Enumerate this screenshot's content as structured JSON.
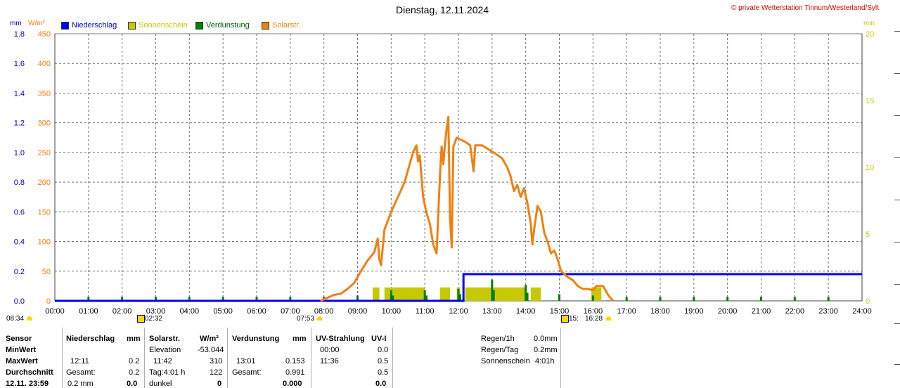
{
  "header": {
    "title": "Dienstag, 12.11.2024",
    "copyright": "© private Wetterstation Tinnum/Westerland/Sylt",
    "unit_mm": "mm",
    "unit_wm2": "W/m²",
    "unit_min": "min"
  },
  "legend": [
    {
      "label": "Niederschlag",
      "color": "#0000ff"
    },
    {
      "label": "Sonnenschein",
      "color": "#c8c800"
    },
    {
      "label": "Verdunstung",
      "color": "#008000"
    },
    {
      "label": "Solarstr.",
      "color": "#f08010"
    }
  ],
  "markers": {
    "left_time": "08:34",
    "moon_time": "02:32",
    "sunrise": "07:53",
    "sunset_a": "15:",
    "sunset_b": "16:28"
  },
  "chart_data": {
    "type": "line",
    "x_ticks": [
      "00:00",
      "01:00",
      "02:00",
      "03:00",
      "04:00",
      "05:00",
      "06:00",
      "07:00",
      "08:00",
      "09:00",
      "10:00",
      "11:00",
      "12:00",
      "13:00",
      "14:00",
      "15:00",
      "16:00",
      "17:00",
      "18:00",
      "19:00",
      "20:00",
      "21:00",
      "22:00",
      "23:00",
      "24:00"
    ],
    "y_left_mm_ticks": [
      "0.0",
      "0.2",
      "0.4",
      "0.6",
      "0.8",
      "1.0",
      "1.2",
      "1.4",
      "1.6",
      "1.8"
    ],
    "y_left_wm2_ticks": [
      "0",
      "50",
      "100",
      "150",
      "200",
      "250",
      "300",
      "350",
      "400",
      "450"
    ],
    "y_right_min_ticks": [
      "0",
      "5",
      "10",
      "15",
      "20"
    ],
    "ylim_mm": [
      0,
      2.0
    ],
    "ylim_wm2": [
      0,
      450
    ],
    "ylim_min": [
      0,
      20
    ],
    "xlim_hours": [
      0,
      24
    ],
    "grid": true,
    "series": [
      {
        "name": "Solarstr.",
        "unit": "W/m²",
        "color": "#f08010",
        "points": [
          [
            7.9,
            0
          ],
          [
            8.1,
            5
          ],
          [
            8.3,
            10
          ],
          [
            8.5,
            12
          ],
          [
            8.7,
            20
          ],
          [
            8.9,
            30
          ],
          [
            9.1,
            50
          ],
          [
            9.3,
            68
          ],
          [
            9.5,
            82
          ],
          [
            9.6,
            105
          ],
          [
            9.65,
            70
          ],
          [
            9.7,
            60
          ],
          [
            9.8,
            120
          ],
          [
            10.0,
            150
          ],
          [
            10.2,
            175
          ],
          [
            10.4,
            200
          ],
          [
            10.55,
            230
          ],
          [
            10.65,
            250
          ],
          [
            10.75,
            262
          ],
          [
            10.8,
            235
          ],
          [
            10.85,
            245
          ],
          [
            10.95,
            175
          ],
          [
            11.05,
            148
          ],
          [
            11.15,
            130
          ],
          [
            11.25,
            95
          ],
          [
            11.35,
            80
          ],
          [
            11.45,
            210
          ],
          [
            11.5,
            260
          ],
          [
            11.55,
            230
          ],
          [
            11.6,
            265
          ],
          [
            11.65,
            290
          ],
          [
            11.7,
            310
          ],
          [
            11.75,
            140
          ],
          [
            11.8,
            90
          ],
          [
            11.85,
            260
          ],
          [
            11.95,
            275
          ],
          [
            12.05,
            272
          ],
          [
            12.2,
            268
          ],
          [
            12.35,
            262
          ],
          [
            12.45,
            218
          ],
          [
            12.5,
            262
          ],
          [
            12.7,
            262
          ],
          [
            12.9,
            255
          ],
          [
            13.1,
            248
          ],
          [
            13.3,
            240
          ],
          [
            13.45,
            225
          ],
          [
            13.55,
            210
          ],
          [
            13.65,
            185
          ],
          [
            13.75,
            195
          ],
          [
            13.85,
            175
          ],
          [
            13.95,
            190
          ],
          [
            14.05,
            165
          ],
          [
            14.15,
            130
          ],
          [
            14.2,
            95
          ],
          [
            14.25,
            120
          ],
          [
            14.35,
            160
          ],
          [
            14.45,
            150
          ],
          [
            14.55,
            115
          ],
          [
            14.65,
            100
          ],
          [
            14.75,
            80
          ],
          [
            14.85,
            85
          ],
          [
            14.95,
            70
          ],
          [
            15.05,
            50
          ],
          [
            15.15,
            45
          ],
          [
            15.25,
            40
          ],
          [
            15.4,
            35
          ],
          [
            15.55,
            25
          ],
          [
            15.7,
            20
          ],
          [
            15.85,
            20
          ],
          [
            16.0,
            18
          ],
          [
            16.1,
            25
          ],
          [
            16.3,
            25
          ],
          [
            16.45,
            10
          ],
          [
            16.55,
            3
          ],
          [
            16.6,
            0
          ]
        ]
      },
      {
        "name": "Niederschlag",
        "unit": "mm",
        "color": "#0000ff",
        "points": [
          [
            0,
            0
          ],
          [
            12.15,
            0
          ],
          [
            12.15,
            0.2
          ],
          [
            24,
            0.2
          ]
        ]
      },
      {
        "name": "Sonnenschein",
        "unit": "min",
        "color": "#c8c800",
        "bars": [
          [
            9.45,
            9.65,
            1
          ],
          [
            9.8,
            11.0,
            1
          ],
          [
            11.45,
            11.75,
            1
          ],
          [
            11.95,
            12.05,
            1
          ],
          [
            12.2,
            14.0,
            1
          ],
          [
            14.15,
            14.45,
            1
          ],
          [
            15.95,
            16.25,
            1
          ]
        ]
      },
      {
        "name": "Verdunstung",
        "unit": "min",
        "color": "#008000",
        "bars": [
          [
            1,
            0.3
          ],
          [
            2,
            0.3
          ],
          [
            3,
            0.3
          ],
          [
            4,
            0.3
          ],
          [
            5,
            0.3
          ],
          [
            6,
            0.3
          ],
          [
            7,
            0.3
          ],
          [
            8,
            0.3
          ],
          [
            9,
            0.4
          ],
          [
            10,
            0.8
          ],
          [
            10.05,
            0.4
          ],
          [
            11,
            0.8
          ],
          [
            11.05,
            0.4
          ],
          [
            12,
            0.9
          ],
          [
            12.05,
            0.5
          ],
          [
            13,
            1.6
          ],
          [
            13.05,
            0.8
          ],
          [
            14,
            1.2
          ],
          [
            14.05,
            0.6
          ],
          [
            15,
            0.5
          ],
          [
            16,
            0.4
          ],
          [
            17,
            0.3
          ],
          [
            18,
            0.3
          ],
          [
            19,
            0.3
          ],
          [
            20,
            0.3
          ],
          [
            21,
            0.3
          ],
          [
            22,
            0.3
          ],
          [
            23,
            0.3
          ]
        ]
      }
    ]
  },
  "table": {
    "col1": {
      "head": "Sensor",
      "rows": [
        "MinWert",
        "MaxWert",
        "Durchschnitt",
        "12.11.  23:59"
      ]
    },
    "niederschlag": {
      "head": "Niederschlag",
      "unit": "mm",
      "max_time": "12:11",
      "max_val": "0.2",
      "avg_label": "Gesamt:",
      "avg_val": "0.2",
      "last_label": "0.2 mm",
      "last_val": "0.0"
    },
    "solar": {
      "head": "Solarstr.",
      "unit": "W/m²",
      "min_label": "Elevation",
      "min_val": "-53.044",
      "max_time": "11:42",
      "max_val": "310",
      "avg_label": "Tag:4:01 h",
      "avg_val": "122",
      "last_label": "dunkel",
      "last_val": "0"
    },
    "verdunstung": {
      "head": "Verdunstung",
      "unit": "mm",
      "max_time": "13:01",
      "max_val": "0.153",
      "avg_label": "Gesamt:",
      "avg_val": "0.991",
      "last_val": "0.000"
    },
    "uv": {
      "head": "UV-Strahlung",
      "unit": "UV-I",
      "min_time": "00:00",
      "min_val": "0.0",
      "max_time": "11:36",
      "max_val": "0.5",
      "avg_val": "0.5",
      "last_val": "0.0"
    },
    "summary": [
      {
        "label": "Regen/1h",
        "value": "0.0mm"
      },
      {
        "label": "Regen/Tag",
        "value": "0.2mm"
      },
      {
        "label": "Sonnenschein",
        "value": "4:01h"
      }
    ]
  }
}
